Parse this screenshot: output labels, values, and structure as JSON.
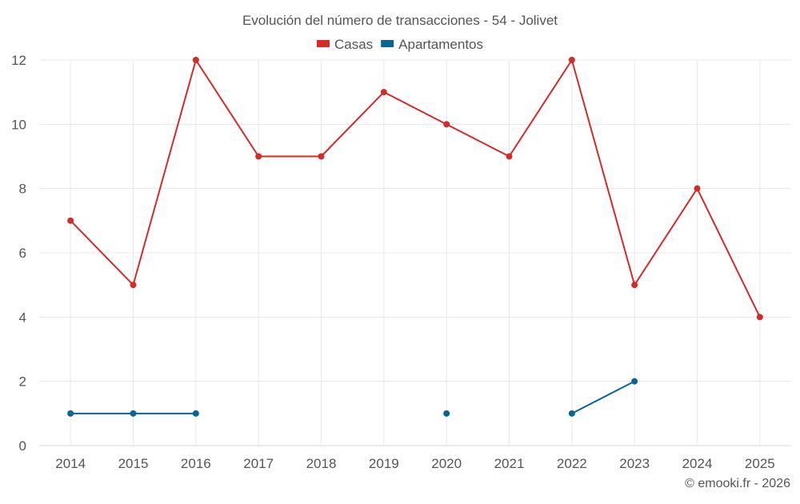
{
  "chart_data": {
    "type": "line",
    "title": "Evolución del número de transacciones - 54 - Jolivet",
    "xlabel": "",
    "ylabel": "",
    "categories": [
      "2014",
      "2015",
      "2016",
      "2017",
      "2018",
      "2019",
      "2020",
      "2021",
      "2022",
      "2023",
      "2024",
      "2025"
    ],
    "ylim": [
      0,
      12
    ],
    "yticks": [
      0,
      2,
      4,
      6,
      8,
      10,
      12
    ],
    "grid": true,
    "legend_position": "top-center",
    "series": [
      {
        "name": "Casas",
        "color": "#d42a2a",
        "values": [
          7,
          5,
          12,
          9,
          9,
          11,
          10,
          9,
          12,
          5,
          8,
          4
        ]
      },
      {
        "name": "Apartamentos",
        "color": "#0a6496",
        "values": [
          1,
          1,
          1,
          null,
          null,
          null,
          1,
          null,
          1,
          2,
          null,
          null
        ]
      }
    ],
    "credit": "© emooki.fr - 2026"
  }
}
